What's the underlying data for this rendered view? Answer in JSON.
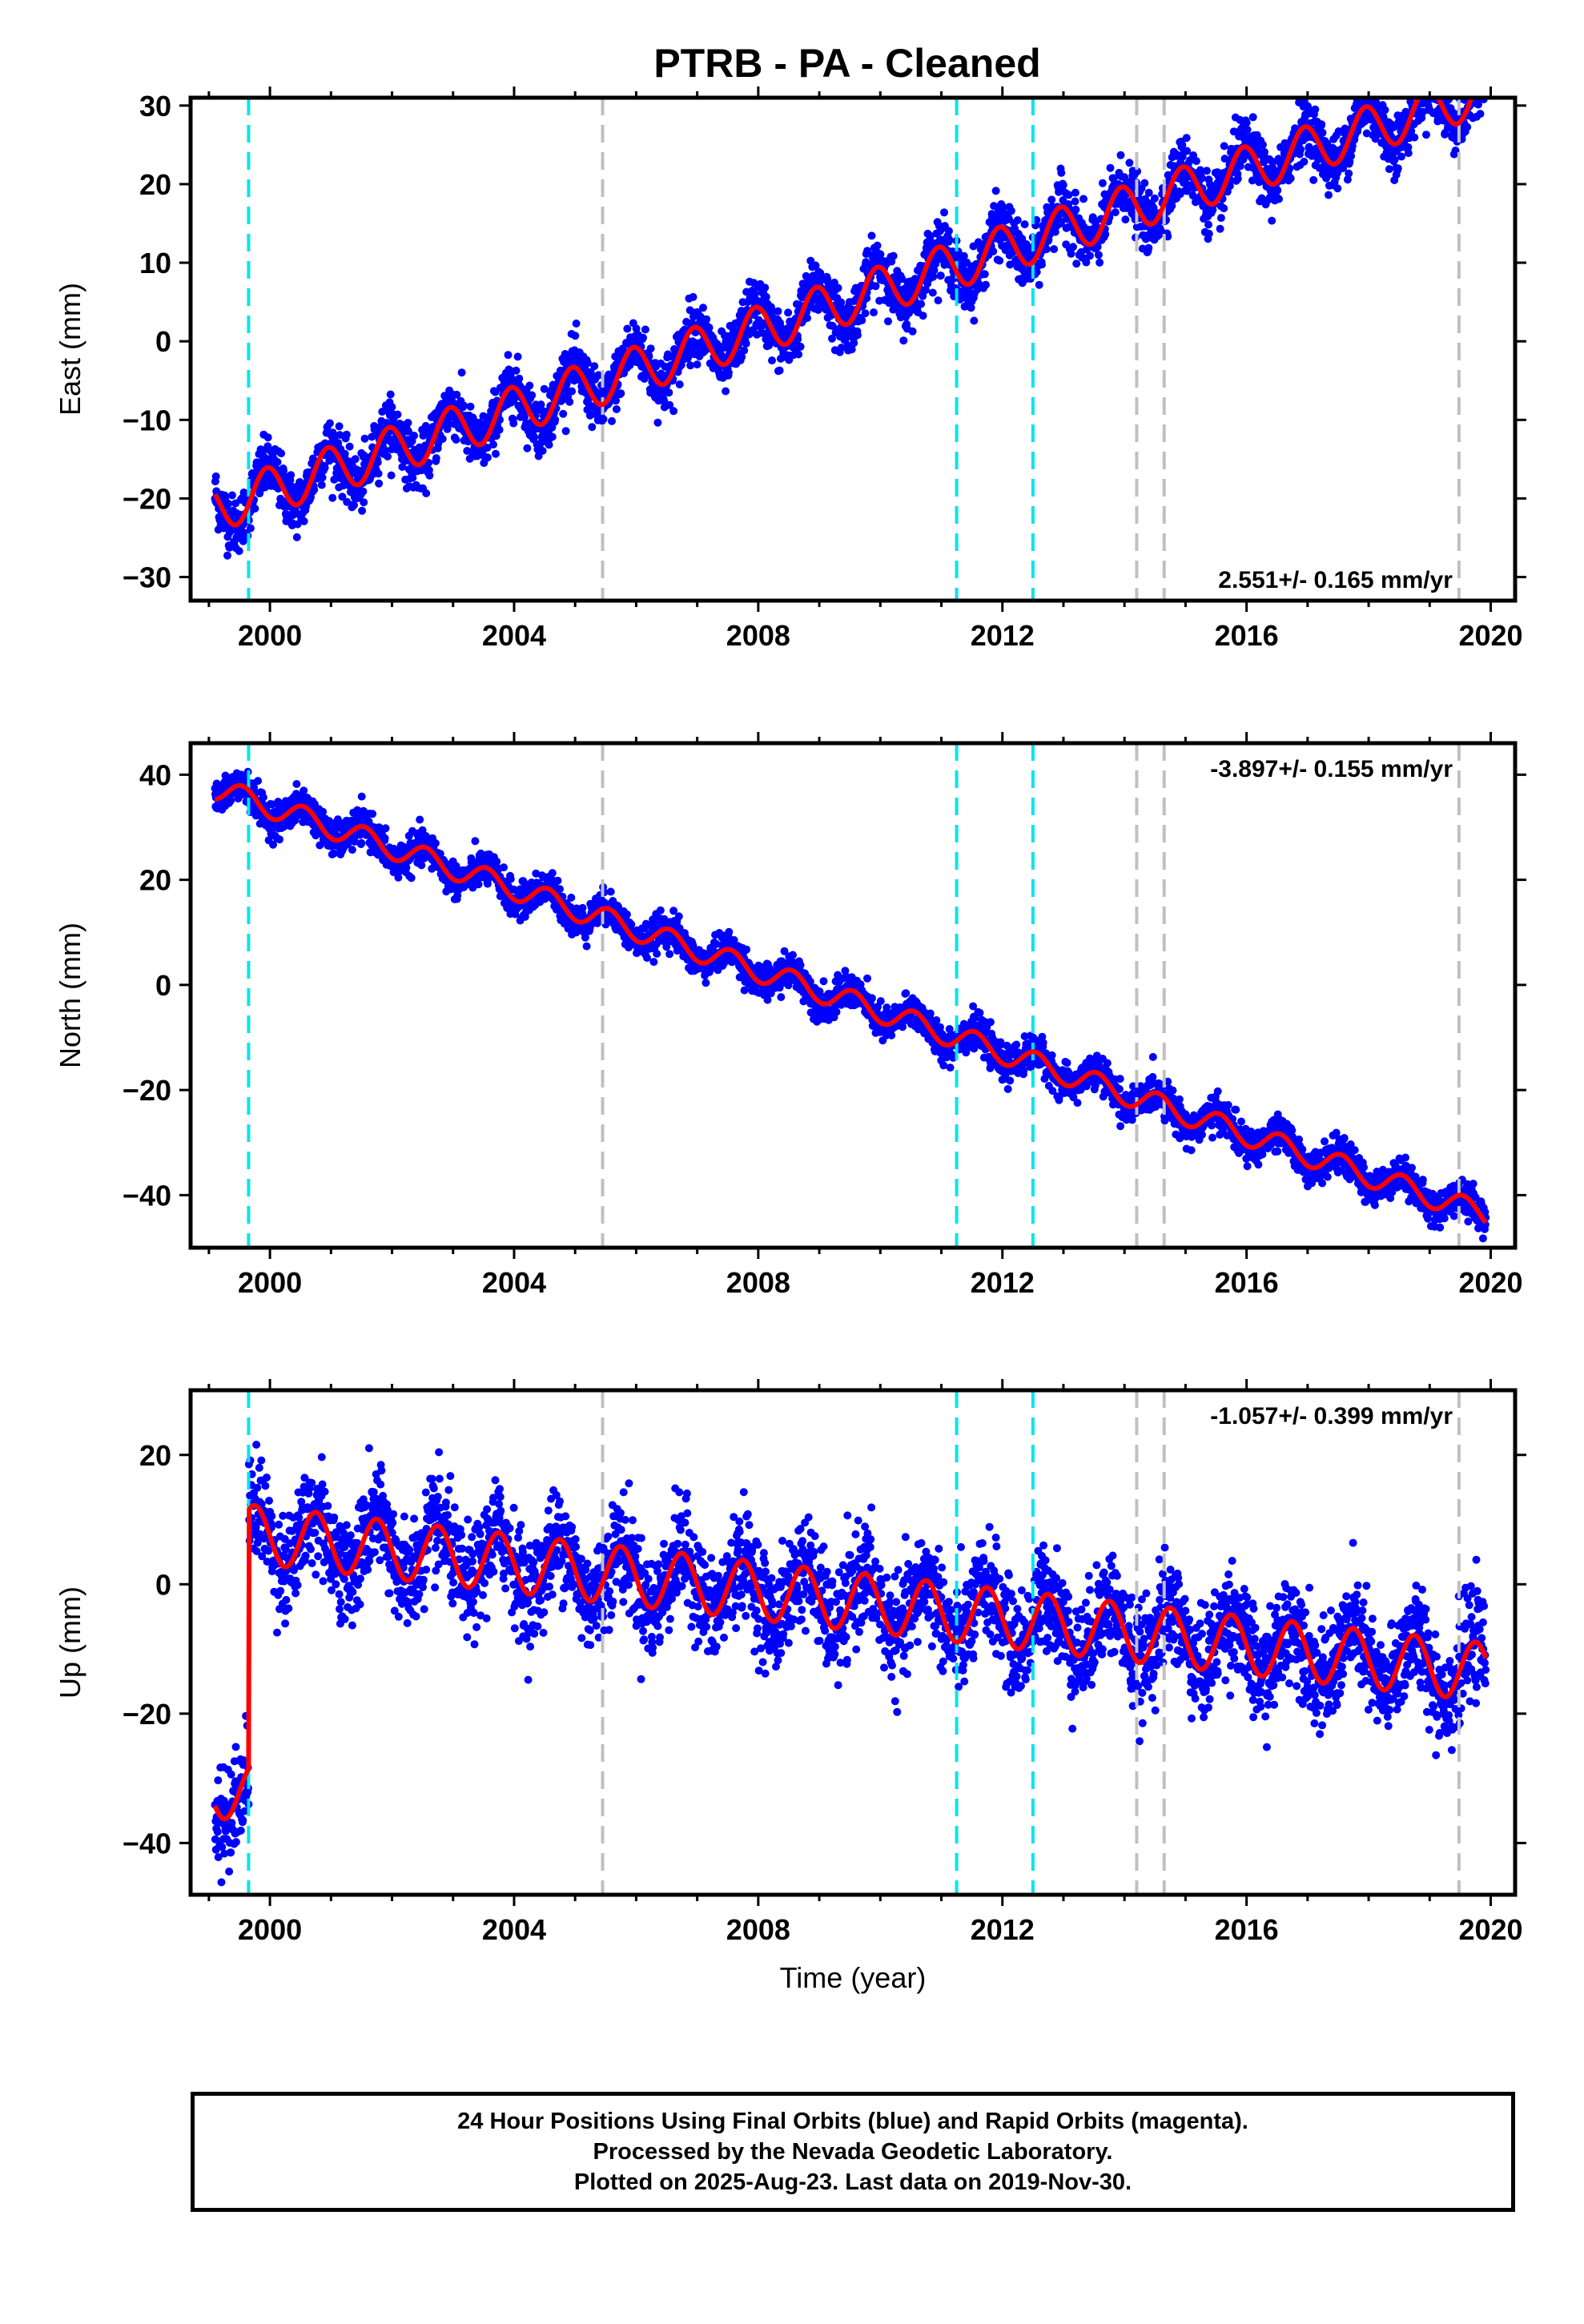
{
  "figure": {
    "title": "PTRB  - PA - Cleaned",
    "footer": [
      "24 Hour Positions Using Final Orbits (blue) and Rapid Orbits (magenta).",
      "Processed by the Nevada Geodetic Laboratory.",
      "Plotted on 2025-Aug-23. Last data on 2019-Nov-30."
    ],
    "colors": {
      "observations": "#0000ff",
      "model_fit": "#ff0000",
      "equipment_change_lines": "#00e5ee",
      "other_event_lines": "#c0c0c0"
    }
  },
  "chart_data": [
    {
      "type": "scatter",
      "component": "east",
      "ylabel": "East (mm)",
      "xlabel": "",
      "xlim": [
        1998.7,
        2020.4
      ],
      "ylim": [
        -33,
        31
      ],
      "xticks": [
        2000,
        2004,
        2008,
        2012,
        2016,
        2020
      ],
      "yticks": [
        -30,
        -20,
        -10,
        0,
        10,
        20,
        30
      ],
      "rate_text": "2.551+/- 0.165 mm/yr",
      "rate_position": "bottom-right",
      "data_start": 1999.1,
      "data_end": 2019.92,
      "trend": {
        "at_1999": -21.5,
        "rate_mm_per_yr": 2.551
      },
      "offsets": [],
      "seasonal": {
        "amplitude": 3.0,
        "peak_phase_yr": 0.95
      },
      "scatter_sd": 1.8,
      "cyan_lines": [
        1999.65,
        2011.25,
        2012.5
      ],
      "gray_lines": [
        2005.45,
        2014.2,
        2014.65,
        2019.48
      ]
    },
    {
      "type": "scatter",
      "component": "north",
      "ylabel": "North (mm)",
      "xlabel": "",
      "xlim": [
        1998.7,
        2020.4
      ],
      "ylim": [
        -50,
        46
      ],
      "xticks": [
        2000,
        2004,
        2008,
        2012,
        2016,
        2020
      ],
      "yticks": [
        -40,
        -20,
        0,
        20,
        40
      ],
      "rate_text": "-3.897+/- 0.155 mm/yr",
      "rate_position": "top-right",
      "data_start": 1999.1,
      "data_end": 2019.92,
      "trend": {
        "at_1999": 37.8,
        "rate_mm_per_yr": -3.897
      },
      "offsets": [],
      "seasonal": {
        "amplitude": 2.2,
        "peak_phase_yr": 0.55
      },
      "scatter_sd": 1.6,
      "cyan_lines": [
        1999.65,
        2011.25,
        2012.5
      ],
      "gray_lines": [
        2005.45,
        2014.2,
        2014.65,
        2019.48
      ]
    },
    {
      "type": "scatter",
      "component": "up",
      "ylabel": "Up (mm)",
      "xlabel": "Time (year)",
      "xlim": [
        1998.7,
        2020.4
      ],
      "ylim": [
        -48,
        30
      ],
      "xticks": [
        2000,
        2004,
        2008,
        2012,
        2016,
        2020
      ],
      "yticks": [
        -40,
        -20,
        0,
        20
      ],
      "rate_text": "-1.057+/- 0.399 mm/yr",
      "rate_position": "top-right",
      "data_start": 1999.1,
      "data_end": 2019.92,
      "trend": {
        "at_1999": -31.5,
        "rate_mm_per_yr": -1.057
      },
      "offsets": [
        {
          "year": 1999.65,
          "size_mm": 40.0
        }
      ],
      "seasonal": {
        "amplitude": 4.5,
        "peak_phase_yr": 0.75
      },
      "scatter_sd": 4.0,
      "cyan_lines": [
        1999.65,
        2011.25,
        2012.5
      ],
      "gray_lines": [
        2005.45,
        2014.2,
        2014.65,
        2019.48
      ]
    }
  ]
}
